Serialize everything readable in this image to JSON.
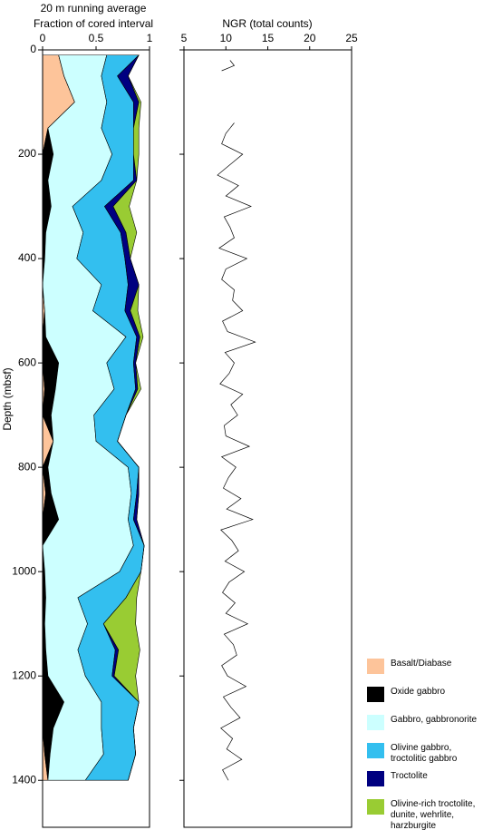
{
  "chart_data": [
    {
      "type": "area",
      "stacked": true,
      "title": "20 m running average",
      "xlabel": "Fraction of cored interval",
      "ylabel": "Depth (mbsf)",
      "xlim": [
        0,
        1
      ],
      "xticks": [
        0,
        0.5,
        1
      ],
      "ylim": [
        0,
        1490
      ],
      "yticks": [
        0,
        200,
        400,
        600,
        800,
        1000,
        1200,
        1400
      ],
      "y": [
        10,
        50,
        100,
        150,
        200,
        250,
        300,
        350,
        400,
        450,
        500,
        550,
        600,
        650,
        700,
        750,
        800,
        850,
        900,
        950,
        1000,
        1050,
        1100,
        1150,
        1200,
        1250,
        1300,
        1350,
        1400
      ],
      "series": [
        {
          "name": "Basalt/Diabase",
          "color": "#fdc49a",
          "values": [
            0.15,
            0.2,
            0.3,
            0.05,
            0,
            0,
            0,
            0,
            0,
            0,
            0.02,
            0,
            0,
            0.02,
            0,
            0.1,
            0,
            0.03,
            0,
            0,
            0,
            0,
            0,
            0,
            0,
            0,
            0,
            0.02,
            0.05
          ]
        },
        {
          "name": "Oxide gabbro",
          "color": "#000000",
          "values": [
            0,
            0,
            0,
            0,
            0.1,
            0.05,
            0.08,
            0.03,
            0.02,
            0,
            0,
            0.03,
            0.15,
            0.1,
            0.08,
            0,
            0.05,
            0.05,
            0.15,
            0,
            0.02,
            0.03,
            0.02,
            0.03,
            0.05,
            0.2,
            0.1,
            0.05,
            0
          ]
        },
        {
          "name": "Gabbro, gabbronorite",
          "color": "#ccffff",
          "values": [
            0.45,
            0.35,
            0.3,
            0.5,
            0.55,
            0.5,
            0.2,
            0.35,
            0.3,
            0.55,
            0.45,
            0.75,
            0.45,
            0.55,
            0.4,
            0.4,
            0.75,
            0.75,
            0.65,
            0.85,
            0.7,
            0.3,
            0.4,
            0.3,
            0.35,
            0.35,
            0.45,
            0.5,
            0.35
          ]
        },
        {
          "name": "Olivine gabbro, troctolitic gabbro",
          "color": "#33bfef",
          "values": [
            0.3,
            0.15,
            0.25,
            0.3,
            0.2,
            0.3,
            0.3,
            0.35,
            0.45,
            0.25,
            0.3,
            0.1,
            0.25,
            0.2,
            0.3,
            0.2,
            0.1,
            0.05,
            0.05,
            0.1,
            0.2,
            0.45,
            0.15,
            0.35,
            0.25,
            0.35,
            0.3,
            0.3,
            0.4
          ]
        },
        {
          "name": "Troctolite",
          "color": "#000080",
          "values": [
            0,
            0.1,
            0.05,
            0,
            0,
            0.03,
            0.08,
            0.05,
            0.05,
            0.1,
            0.05,
            0.03,
            0.02,
            0.02,
            0,
            0,
            0,
            0.02,
            0.03,
            0,
            0,
            0,
            0,
            0.03,
            0.02,
            0,
            0,
            0,
            0
          ]
        },
        {
          "name": "Olivine-rich troctolite, dunite, wehrlite, harzburgite",
          "color": "#99cc33",
          "values": [
            0,
            0,
            0.02,
            0.05,
            0.05,
            0,
            0.15,
            0.1,
            0,
            0,
            0.07,
            0.03,
            0,
            0.03,
            0,
            0,
            0,
            0,
            0,
            0,
            0,
            0.1,
            0.3,
            0.2,
            0.2,
            0,
            0,
            0,
            0
          ]
        }
      ]
    },
    {
      "type": "line",
      "xlabel": "NGR (total counts)",
      "color": "#000000",
      "xlim": [
        5,
        25
      ],
      "xticks": [
        5,
        10,
        15,
        20,
        25
      ],
      "ylim": [
        0,
        1490
      ],
      "yticks": [
        0,
        200,
        400,
        600,
        800,
        1000,
        1200,
        1400
      ],
      "y": [
        20,
        30,
        40,
        90,
        140,
        160,
        180,
        200,
        220,
        240,
        260,
        280,
        300,
        320,
        340,
        360,
        380,
        400,
        420,
        440,
        460,
        480,
        500,
        520,
        540,
        560,
        580,
        600,
        620,
        640,
        660,
        680,
        700,
        720,
        740,
        760,
        780,
        800,
        820,
        840,
        860,
        880,
        900,
        920,
        940,
        960,
        980,
        1000,
        1020,
        1040,
        1060,
        1080,
        1100,
        1120,
        1140,
        1160,
        1180,
        1200,
        1220,
        1240,
        1260,
        1280,
        1300,
        1320,
        1340,
        1360,
        1380,
        1400
      ],
      "values": [
        10.5,
        11,
        9.5,
        null,
        11,
        10,
        9.5,
        12,
        10.5,
        9,
        11.5,
        10,
        13,
        9.8,
        10.5,
        11,
        9.2,
        12.5,
        10,
        9.5,
        11,
        10.8,
        12,
        9.6,
        10.2,
        13.5,
        9.9,
        11,
        10.4,
        9.3,
        12,
        10.6,
        11.4,
        9.8,
        10,
        12.8,
        9.5,
        11.2,
        10.3,
        9.7,
        11.8,
        10.1,
        13.2,
        9.4,
        10.7,
        11.5,
        9.9,
        12.2,
        10.4,
        9.6,
        11.1,
        10,
        12.6,
        9.8,
        10.9,
        11.3,
        9.5,
        10.2,
        12.4,
        9.7,
        10.6,
        11.7,
        9.4,
        10.8,
        10.1,
        11.9,
        9.6,
        10.3
      ]
    }
  ]
}
